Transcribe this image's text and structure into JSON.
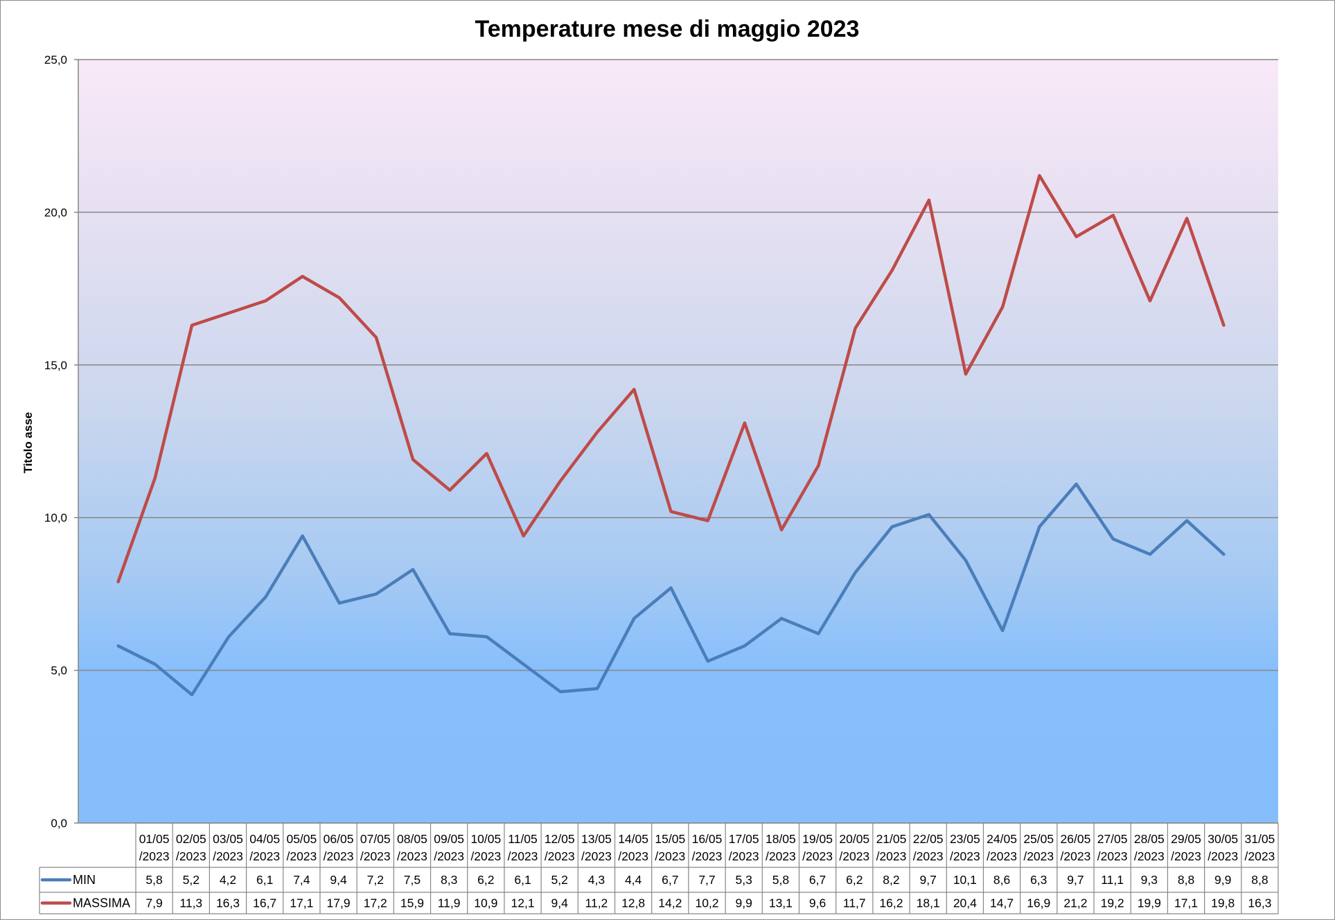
{
  "chart_data": {
    "type": "line",
    "title": "Temperature mese di maggio 2023",
    "xlabel": "",
    "ylabel": "Titolo asse",
    "ylim": [
      0,
      25
    ],
    "yticks": [
      "0,0",
      "5,0",
      "10,0",
      "15,0",
      "20,0",
      "25,0"
    ],
    "grid": true,
    "legend": "data-table",
    "categories": [
      "01/05/2023",
      "02/05/2023",
      "03/05/2023",
      "04/05/2023",
      "05/05/2023",
      "06/05/2023",
      "07/05/2023",
      "08/05/2023",
      "09/05/2023",
      "10/05/2023",
      "11/05/2023",
      "12/05/2023",
      "13/05/2023",
      "14/05/2023",
      "15/05/2023",
      "16/05/2023",
      "17/05/2023",
      "18/05/2023",
      "19/05/2023",
      "20/05/2023",
      "21/05/2023",
      "22/05/2023",
      "23/05/2023",
      "24/05/2023",
      "25/05/2023",
      "26/05/2023",
      "27/05/2023",
      "28/05/2023",
      "29/05/2023",
      "30/05/2023",
      "31/05/2023"
    ],
    "series": [
      {
        "name": "MIN",
        "color": "#4a7ebb",
        "values": [
          5.8,
          5.2,
          4.2,
          6.1,
          7.4,
          9.4,
          7.2,
          7.5,
          8.3,
          6.2,
          6.1,
          5.2,
          4.3,
          4.4,
          6.7,
          7.7,
          5.3,
          5.8,
          6.7,
          6.2,
          8.2,
          9.7,
          10.1,
          8.6,
          6.3,
          9.7,
          11.1,
          9.3,
          8.8,
          9.9,
          8.8
        ],
        "labels": [
          "5,8",
          "5,2",
          "4,2",
          "6,1",
          "7,4",
          "9,4",
          "7,2",
          "7,5",
          "8,3",
          "6,2",
          "6,1",
          "5,2",
          "4,3",
          "4,4",
          "6,7",
          "7,7",
          "5,3",
          "5,8",
          "6,7",
          "6,2",
          "8,2",
          "9,7",
          "10,1",
          "8,6",
          "6,3",
          "9,7",
          "11,1",
          "9,3",
          "8,8",
          "9,9",
          "8,8"
        ]
      },
      {
        "name": "MASSIMA",
        "color": "#be4b48",
        "values": [
          7.9,
          11.3,
          16.3,
          16.7,
          17.1,
          17.9,
          17.2,
          15.9,
          11.9,
          10.9,
          12.1,
          9.4,
          11.2,
          12.8,
          14.2,
          10.2,
          9.9,
          13.1,
          9.6,
          11.7,
          16.2,
          18.1,
          20.4,
          14.7,
          16.9,
          21.2,
          19.2,
          19.9,
          17.1,
          19.8,
          16.3
        ],
        "labels": [
          "7,9",
          "11,3",
          "16,3",
          "16,7",
          "17,1",
          "17,9",
          "17,2",
          "15,9",
          "11,9",
          "10,9",
          "12,1",
          "9,4",
          "11,2",
          "12,8",
          "14,2",
          "10,2",
          "9,9",
          "13,1",
          "9,6",
          "11,7",
          "16,2",
          "18,1",
          "20,4",
          "14,7",
          "16,9",
          "21,2",
          "19,2",
          "19,9",
          "17,1",
          "19,8",
          "16,3"
        ]
      }
    ],
    "plot_background": [
      "#f9e9f8",
      "#e6e0f2",
      "#cbd7ee",
      "#a5c9f3",
      "#87bffc",
      "#86befc"
    ]
  }
}
